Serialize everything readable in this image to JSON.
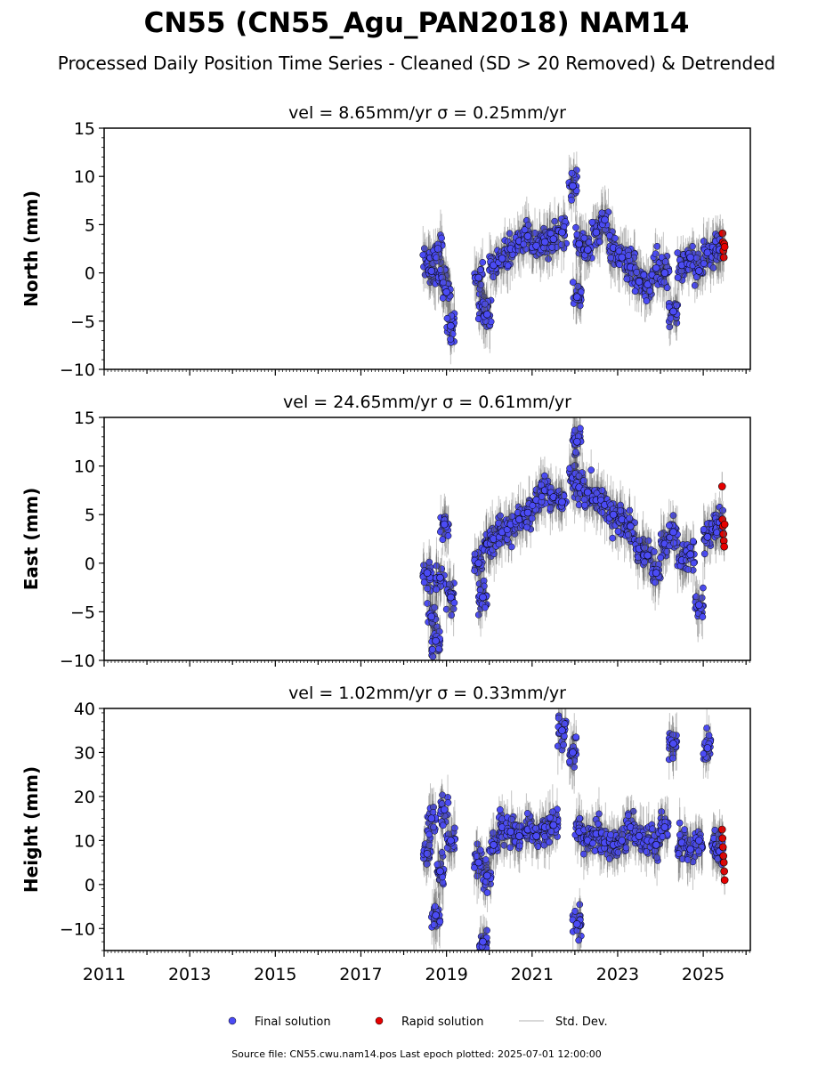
{
  "title": "CN55 (CN55_Agu_PAN2018) NAM14",
  "subtitle": "Processed Daily Position Time Series - Cleaned (SD > 20 Removed) & Detrended",
  "legend": [
    {
      "label": "Final solution",
      "color": "#4b4bf5",
      "marker": "circle"
    },
    {
      "label": "Rapid solution",
      "color": "#e60000",
      "marker": "circle"
    },
    {
      "label": "Std. Dev.",
      "color": "#cccccc",
      "marker": "line"
    }
  ],
  "footer": "Source file: CN55.cwu.nam14.pos  Last epoch plotted: 2025-07-01 12:00:00",
  "x_ticks": [
    "2011",
    "2013",
    "2015",
    "2017",
    "2019",
    "2021",
    "2023",
    "2025"
  ],
  "colors": {
    "final": "#4b4bf5",
    "rapid": "#e60000",
    "errorbar": "#555555"
  },
  "chart_data": [
    {
      "type": "scatter",
      "title": "vel = 8.65mm/yr   σ = 0.25mm/yr",
      "ylabel": "North (mm)",
      "xlim": [
        2011.0,
        2026.1
      ],
      "ylim": [
        -10,
        15
      ],
      "yticks": [
        -10,
        -5,
        0,
        5,
        10,
        15
      ],
      "ytick_labels": [
        "−10",
        "−5",
        "0",
        "5",
        "10",
        "15"
      ],
      "x_ticks": [
        2011,
        2013,
        2015,
        2017,
        2019,
        2021,
        2023,
        2025
      ],
      "series": [
        {
          "name": "Final solution",
          "kind": "final",
          "x": [
            2018.55,
            2018.65,
            2018.8,
            2018.9,
            2019.0,
            2019.1,
            2019.75,
            2019.85,
            2019.95,
            2020.1,
            2020.3,
            2020.5,
            2020.7,
            2020.9,
            2021.1,
            2021.3,
            2021.5,
            2021.7,
            2021.95,
            2022.05,
            2022.1,
            2022.3,
            2022.5,
            2022.7,
            2022.9,
            2023.1,
            2023.3,
            2023.5,
            2023.7,
            2023.9,
            2024.1,
            2024.3,
            2024.5,
            2024.7,
            2024.9,
            2025.1,
            2025.3,
            2025.38
          ],
          "y": [
            1.0,
            0.2,
            2.5,
            -0.5,
            -2.0,
            -5.5,
            -0.5,
            -3.5,
            -4.3,
            0.8,
            1.5,
            2.5,
            3.3,
            3.8,
            2.8,
            3.2,
            3.5,
            4.2,
            9.0,
            -2.5,
            3.0,
            2.4,
            4.2,
            5.5,
            2.6,
            1.6,
            0.6,
            -0.9,
            -1.2,
            0.5,
            0.0,
            -4.0,
            0.8,
            1.6,
            0.2,
            2.1,
            2.0,
            2.4
          ]
        },
        {
          "name": "Rapid solution",
          "kind": "rapid",
          "x": [
            2025.45,
            2025.46,
            2025.47,
            2025.48,
            2025.49,
            2025.5
          ],
          "y": [
            4.1,
            3.2,
            2.3,
            1.6,
            3.0,
            2.7
          ]
        }
      ]
    },
    {
      "type": "scatter",
      "title": "vel = 24.65mm/yr   σ = 0.61mm/yr",
      "ylabel": "East (mm)",
      "xlim": [
        2011.0,
        2026.1
      ],
      "ylim": [
        -10,
        15
      ],
      "yticks": [
        -10,
        -5,
        0,
        5,
        10,
        15
      ],
      "ytick_labels": [
        "−10",
        "−5",
        "0",
        "5",
        "10",
        "15"
      ],
      "x_ticks": [
        2011,
        2013,
        2015,
        2017,
        2019,
        2021,
        2023,
        2025
      ],
      "series": [
        {
          "name": "Final solution",
          "kind": "final",
          "x": [
            2018.55,
            2018.65,
            2018.75,
            2018.85,
            2018.95,
            2019.1,
            2019.75,
            2019.85,
            2019.95,
            2020.1,
            2020.3,
            2020.5,
            2020.7,
            2020.9,
            2021.1,
            2021.3,
            2021.5,
            2021.7,
            2021.95,
            2022.05,
            2022.1,
            2022.3,
            2022.5,
            2022.7,
            2022.9,
            2023.1,
            2023.3,
            2023.5,
            2023.7,
            2023.9,
            2024.1,
            2024.3,
            2024.5,
            2024.7,
            2024.9,
            2025.1,
            2025.3,
            2025.38
          ],
          "y": [
            -1.0,
            -5.5,
            -8.0,
            -1.5,
            4.0,
            -3.5,
            0.0,
            -3.5,
            2.0,
            2.5,
            3.2,
            4.0,
            4.5,
            5.2,
            6.5,
            7.5,
            6.8,
            6.3,
            8.8,
            12.5,
            7.8,
            7.3,
            6.5,
            6.0,
            5.0,
            4.5,
            3.8,
            1.5,
            0.8,
            -1.0,
            2.0,
            3.2,
            0.3,
            0.9,
            -4.3,
            2.7,
            3.5,
            4.2
          ]
        },
        {
          "name": "Rapid solution",
          "kind": "rapid",
          "x": [
            2025.44,
            2025.45,
            2025.46,
            2025.47,
            2025.48,
            2025.49,
            2025.5
          ],
          "y": [
            7.9,
            4.5,
            3.8,
            3.0,
            2.3,
            1.7,
            4.0
          ]
        }
      ]
    },
    {
      "type": "scatter",
      "title": "vel = 1.02mm/yr   σ = 0.33mm/yr",
      "ylabel": "Height (mm)",
      "xlim": [
        2011.0,
        2026.1
      ],
      "ylim": [
        -15,
        40
      ],
      "yticks": [
        -10,
        0,
        10,
        20,
        30,
        40
      ],
      "ytick_labels": [
        "−10",
        "0",
        "10",
        "20",
        "30",
        "40"
      ],
      "x_ticks": [
        2011,
        2013,
        2015,
        2017,
        2019,
        2021,
        2023,
        2025
      ],
      "series": [
        {
          "name": "Final solution",
          "kind": "final",
          "x": [
            2018.55,
            2018.65,
            2018.75,
            2018.85,
            2018.95,
            2019.1,
            2019.75,
            2019.85,
            2019.95,
            2020.1,
            2020.3,
            2020.5,
            2020.7,
            2020.9,
            2021.1,
            2021.3,
            2021.5,
            2021.7,
            2021.95,
            2022.05,
            2022.1,
            2022.3,
            2022.5,
            2022.7,
            2022.9,
            2023.1,
            2023.3,
            2023.5,
            2023.7,
            2023.9,
            2024.1,
            2024.3,
            2024.5,
            2024.7,
            2024.9,
            2025.1,
            2025.3,
            2025.38
          ],
          "y": [
            7.0,
            15.0,
            -7.0,
            3.0,
            17.0,
            10.0,
            5.0,
            -13.0,
            2.0,
            9.0,
            13.0,
            12.0,
            11.0,
            12.5,
            11.0,
            13.0,
            13.5,
            35.0,
            30.0,
            -9.0,
            12.0,
            10.0,
            11.5,
            9.5,
            9.0,
            10.0,
            13.0,
            11.0,
            10.0,
            9.0,
            13.0,
            32.0,
            9.5,
            8.0,
            10.0,
            31.0,
            9.0,
            7.5
          ]
        },
        {
          "name": "Rapid solution",
          "kind": "rapid",
          "x": [
            2025.44,
            2025.45,
            2025.46,
            2025.47,
            2025.48,
            2025.49,
            2025.5
          ],
          "y": [
            12.5,
            10.5,
            8.5,
            6.5,
            5.0,
            3.0,
            1.0
          ]
        }
      ]
    }
  ]
}
